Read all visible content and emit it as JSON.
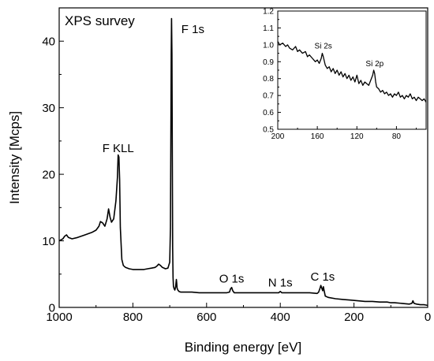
{
  "chart_data": [
    {
      "type": "line",
      "title": "XPS survey",
      "xlabel": "Binding energy [eV]",
      "ylabel": "Intensity [Mcps]",
      "xlim": [
        1000,
        0
      ],
      "ylim": [
        0,
        45
      ],
      "x_reversed": true,
      "grid": false,
      "xticks": [
        1000,
        800,
        600,
        400,
        200,
        0
      ],
      "yticks": [
        0,
        10,
        20,
        30,
        40
      ],
      "annotations": [
        {
          "text": "F KLL",
          "x": 840,
          "y": 22.9
        },
        {
          "text": "F 1s",
          "x": 690,
          "y": 43.4
        },
        {
          "text": "O 1s",
          "x": 532,
          "y": 3.0
        },
        {
          "text": "N 1s",
          "x": 400,
          "y": 2.4
        },
        {
          "text": "C 1s",
          "x": 285,
          "y": 3.3
        }
      ],
      "series": [
        {
          "x": [
            1000,
            990,
            985,
            980,
            975,
            965,
            950,
            930,
            910,
            900,
            892,
            888,
            882,
            876,
            870,
            866,
            862,
            858,
            852,
            846,
            842,
            840,
            838,
            836,
            834,
            830,
            826,
            820,
            810,
            800,
            790,
            780,
            770,
            760,
            750,
            740,
            735,
            730,
            725,
            720,
            715,
            712,
            705,
            700,
            698,
            697,
            696,
            695,
            694,
            693,
            692,
            691,
            690,
            688,
            686,
            684,
            682,
            681,
            680,
            678,
            675,
            670,
            660,
            650,
            640,
            620,
            600,
            580,
            560,
            545,
            538,
            535,
            532,
            529,
            525,
            515,
            500,
            480,
            460,
            440,
            420,
            404,
            400,
            396,
            380,
            360,
            340,
            320,
            300,
            296,
            292,
            290,
            288,
            285,
            283,
            281,
            278,
            270,
            250,
            230,
            210,
            190,
            170,
            150,
            130,
            110,
            100,
            90,
            70,
            50,
            43,
            40,
            37,
            30,
            20,
            10,
            5,
            0
          ],
          "y": [
            10.0,
            10.3,
            10.7,
            10.9,
            10.5,
            10.3,
            10.5,
            10.9,
            11.3,
            11.6,
            12.2,
            12.9,
            12.7,
            12.2,
            13.3,
            14.8,
            13.6,
            12.8,
            13.3,
            16.0,
            19.5,
            22.9,
            22.6,
            19.2,
            12.0,
            7.2,
            6.3,
            6.0,
            5.8,
            5.7,
            5.7,
            5.7,
            5.7,
            5.8,
            5.9,
            6.0,
            6.2,
            6.5,
            6.3,
            6.0,
            5.9,
            5.8,
            5.9,
            6.8,
            12.0,
            25.0,
            38.0,
            43.4,
            38.0,
            22.0,
            9.0,
            4.5,
            3.2,
            2.8,
            2.6,
            3.1,
            4.2,
            3.6,
            2.9,
            2.6,
            2.4,
            2.3,
            2.3,
            2.3,
            2.3,
            2.2,
            2.2,
            2.2,
            2.2,
            2.2,
            2.3,
            2.8,
            3.0,
            2.5,
            2.2,
            2.2,
            2.2,
            2.2,
            2.2,
            2.2,
            2.2,
            2.2,
            2.4,
            2.2,
            2.2,
            2.2,
            2.2,
            2.2,
            2.1,
            2.3,
            2.9,
            3.3,
            3.0,
            2.5,
            3.1,
            2.5,
            1.7,
            1.5,
            1.3,
            1.2,
            1.1,
            1.0,
            0.9,
            0.9,
            0.8,
            0.8,
            0.7,
            0.7,
            0.6,
            0.5,
            0.6,
            1.0,
            0.6,
            0.5,
            0.4,
            0.4,
            0.35,
            0.3
          ]
        }
      ]
    },
    {
      "type": "line",
      "title": "",
      "xlabel": "",
      "ylabel": "",
      "xlim": [
        200,
        50
      ],
      "ylim": [
        0.5,
        1.2
      ],
      "x_reversed": true,
      "grid": false,
      "xticks": [
        200,
        160,
        120,
        80
      ],
      "yticks": [
        0.5,
        0.6,
        0.7,
        0.8,
        0.9,
        1.0,
        1.1,
        1.2
      ],
      "annotations": [
        {
          "text": "Si 2s",
          "x": 154,
          "y": 0.955
        },
        {
          "text": "Si 2p",
          "x": 102,
          "y": 0.85
        }
      ],
      "series": [
        {
          "x": [
            200,
            198,
            195,
            192,
            190,
            188,
            185,
            182,
            180,
            178,
            175,
            172,
            170,
            168,
            165,
            162,
            160,
            158,
            156,
            155,
            154,
            152,
            150,
            148,
            146,
            144,
            142,
            140,
            138,
            136,
            134,
            132,
            130,
            128,
            126,
            124,
            122,
            120,
            118,
            116,
            114,
            112,
            110,
            108,
            106,
            104,
            103,
            102,
            101,
            100,
            98,
            96,
            94,
            92,
            90,
            88,
            86,
            84,
            82,
            80,
            78,
            76,
            74,
            72,
            70,
            68,
            66,
            64,
            62,
            60,
            58,
            56,
            54,
            52,
            50
          ],
          "y": [
            1.02,
            1.0,
            1.01,
            0.99,
            1.0,
            0.98,
            0.97,
            0.99,
            0.96,
            0.97,
            0.95,
            0.96,
            0.93,
            0.94,
            0.92,
            0.9,
            0.91,
            0.89,
            0.92,
            0.95,
            0.93,
            0.88,
            0.86,
            0.87,
            0.84,
            0.86,
            0.83,
            0.85,
            0.82,
            0.84,
            0.81,
            0.83,
            0.8,
            0.82,
            0.79,
            0.81,
            0.78,
            0.82,
            0.77,
            0.79,
            0.76,
            0.78,
            0.77,
            0.76,
            0.79,
            0.82,
            0.85,
            0.83,
            0.78,
            0.75,
            0.74,
            0.72,
            0.73,
            0.71,
            0.72,
            0.7,
            0.71,
            0.69,
            0.71,
            0.7,
            0.72,
            0.69,
            0.7,
            0.68,
            0.7,
            0.69,
            0.71,
            0.68,
            0.69,
            0.67,
            0.69,
            0.68,
            0.67,
            0.68,
            0.66
          ]
        }
      ]
    }
  ],
  "colors": {
    "line": "#000000",
    "background": "#ffffff"
  }
}
